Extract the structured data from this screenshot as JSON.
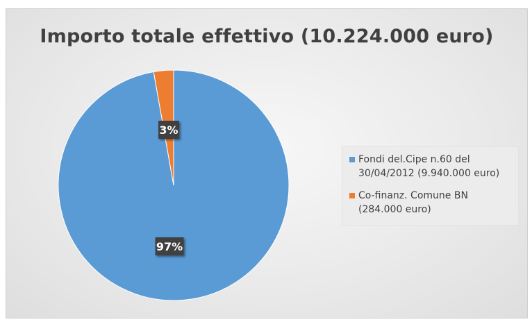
{
  "chart_data": {
    "type": "pie",
    "title": "Importo totale effettivo (10.224.000 euro)",
    "categories": [
      "Fondi del.Cipe n.60 del 30/04/2012 (9.940.000 euro)",
      "Co-finanz. Comune BN (284.000 euro)"
    ],
    "legend_lines": [
      [
        "Fondi del.Cipe n.60 del",
        "30/04/2012 (9.940.000 euro)"
      ],
      [
        "Co-finanz. Comune BN",
        "(284.000 euro)"
      ]
    ],
    "values": [
      9940000,
      284000
    ],
    "data_labels": [
      "97%",
      "3%"
    ],
    "colors": [
      "#5b9bd5",
      "#ed7d31"
    ],
    "legend_position": "right"
  }
}
